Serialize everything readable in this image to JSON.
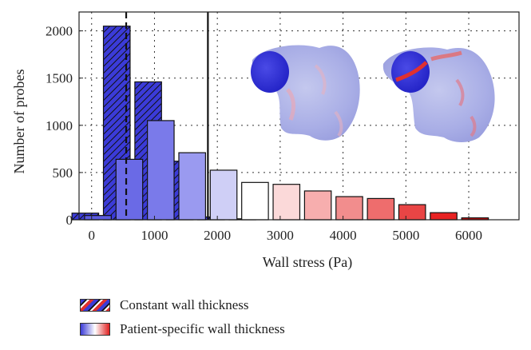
{
  "chart_data": {
    "type": "bar",
    "xlabel": "Wall stress (Pa)",
    "ylabel": "Number of probes",
    "xlim": [
      -200,
      6800
    ],
    "ylim": [
      0,
      2200
    ],
    "xticks": [
      0,
      1000,
      2000,
      3000,
      4000,
      5000,
      6000
    ],
    "xtick_labels": [
      "0",
      "1000",
      "2000",
      "3000",
      "4000",
      "5000",
      "6000"
    ],
    "yticks": [
      0,
      500,
      1000,
      1500,
      2000
    ],
    "ytick_labels": [
      "0",
      "500",
      "1000",
      "1500",
      "2000"
    ],
    "grid": true,
    "reference_lines": [
      {
        "x": 550,
        "style": "dashed"
      },
      {
        "x": 1850,
        "style": "solid"
      }
    ],
    "series": [
      {
        "name": "Constant wall thickness",
        "pattern": "hatched",
        "values": [
          {
            "x": -100,
            "y": 70
          },
          {
            "x": 400,
            "y": 2050
          },
          {
            "x": 900,
            "y": 1460
          },
          {
            "x": 1400,
            "y": 620
          },
          {
            "x": 1900,
            "y": 30
          },
          {
            "x": 2400,
            "y": 10
          }
        ]
      },
      {
        "name": "Patient-specific wall thickness",
        "pattern": "gradient",
        "values": [
          {
            "x": 100,
            "y": 45,
            "color": "#5b5be0"
          },
          {
            "x": 600,
            "y": 640,
            "color": "#6a6ae6"
          },
          {
            "x": 1100,
            "y": 1050,
            "color": "#7a7aea"
          },
          {
            "x": 1600,
            "y": 710,
            "color": "#9a9af0"
          },
          {
            "x": 2100,
            "y": 525,
            "color": "#cfcff6"
          },
          {
            "x": 2600,
            "y": 395,
            "color": "#ffffff"
          },
          {
            "x": 3100,
            "y": 375,
            "color": "#fbd9d9"
          },
          {
            "x": 3600,
            "y": 305,
            "color": "#f7aeae"
          },
          {
            "x": 4100,
            "y": 245,
            "color": "#f28d8d"
          },
          {
            "x": 4600,
            "y": 225,
            "color": "#ee6d6d"
          },
          {
            "x": 5100,
            "y": 160,
            "color": "#e94545"
          },
          {
            "x": 5600,
            "y": 75,
            "color": "#e82222"
          },
          {
            "x": 6100,
            "y": 20,
            "color": "#d01010"
          }
        ]
      }
    ],
    "legend": {
      "placement": "bottom-left",
      "entries": [
        "Constant wall thickness",
        "Patient-specific wall thickness"
      ]
    }
  },
  "colors": {
    "blue": "#3a3ad6",
    "red": "#e02020",
    "grid": "#222222"
  }
}
